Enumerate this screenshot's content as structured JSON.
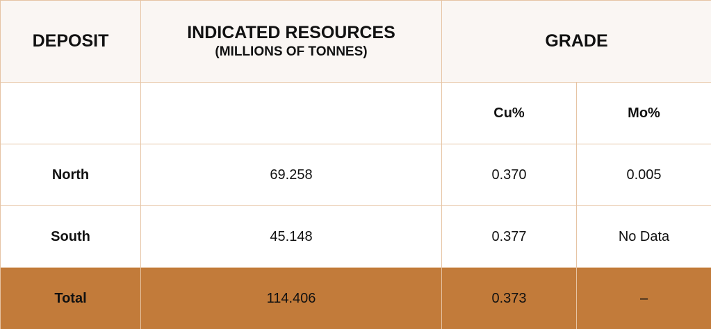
{
  "header": {
    "deposit": "DEPOSIT",
    "resources": "INDICATED RESOURCES",
    "resources_unit": "(MILLIONS OF TONNES)",
    "grade": "GRADE"
  },
  "subheader": [
    "Cu%",
    "Mo%"
  ],
  "rows": [
    [
      "North",
      "69.258",
      "0.370",
      "0.005"
    ],
    [
      "South",
      "45.148",
      "0.377",
      "No Data"
    ]
  ],
  "total": [
    "Total",
    "114.406",
    "0.373",
    "–"
  ]
}
